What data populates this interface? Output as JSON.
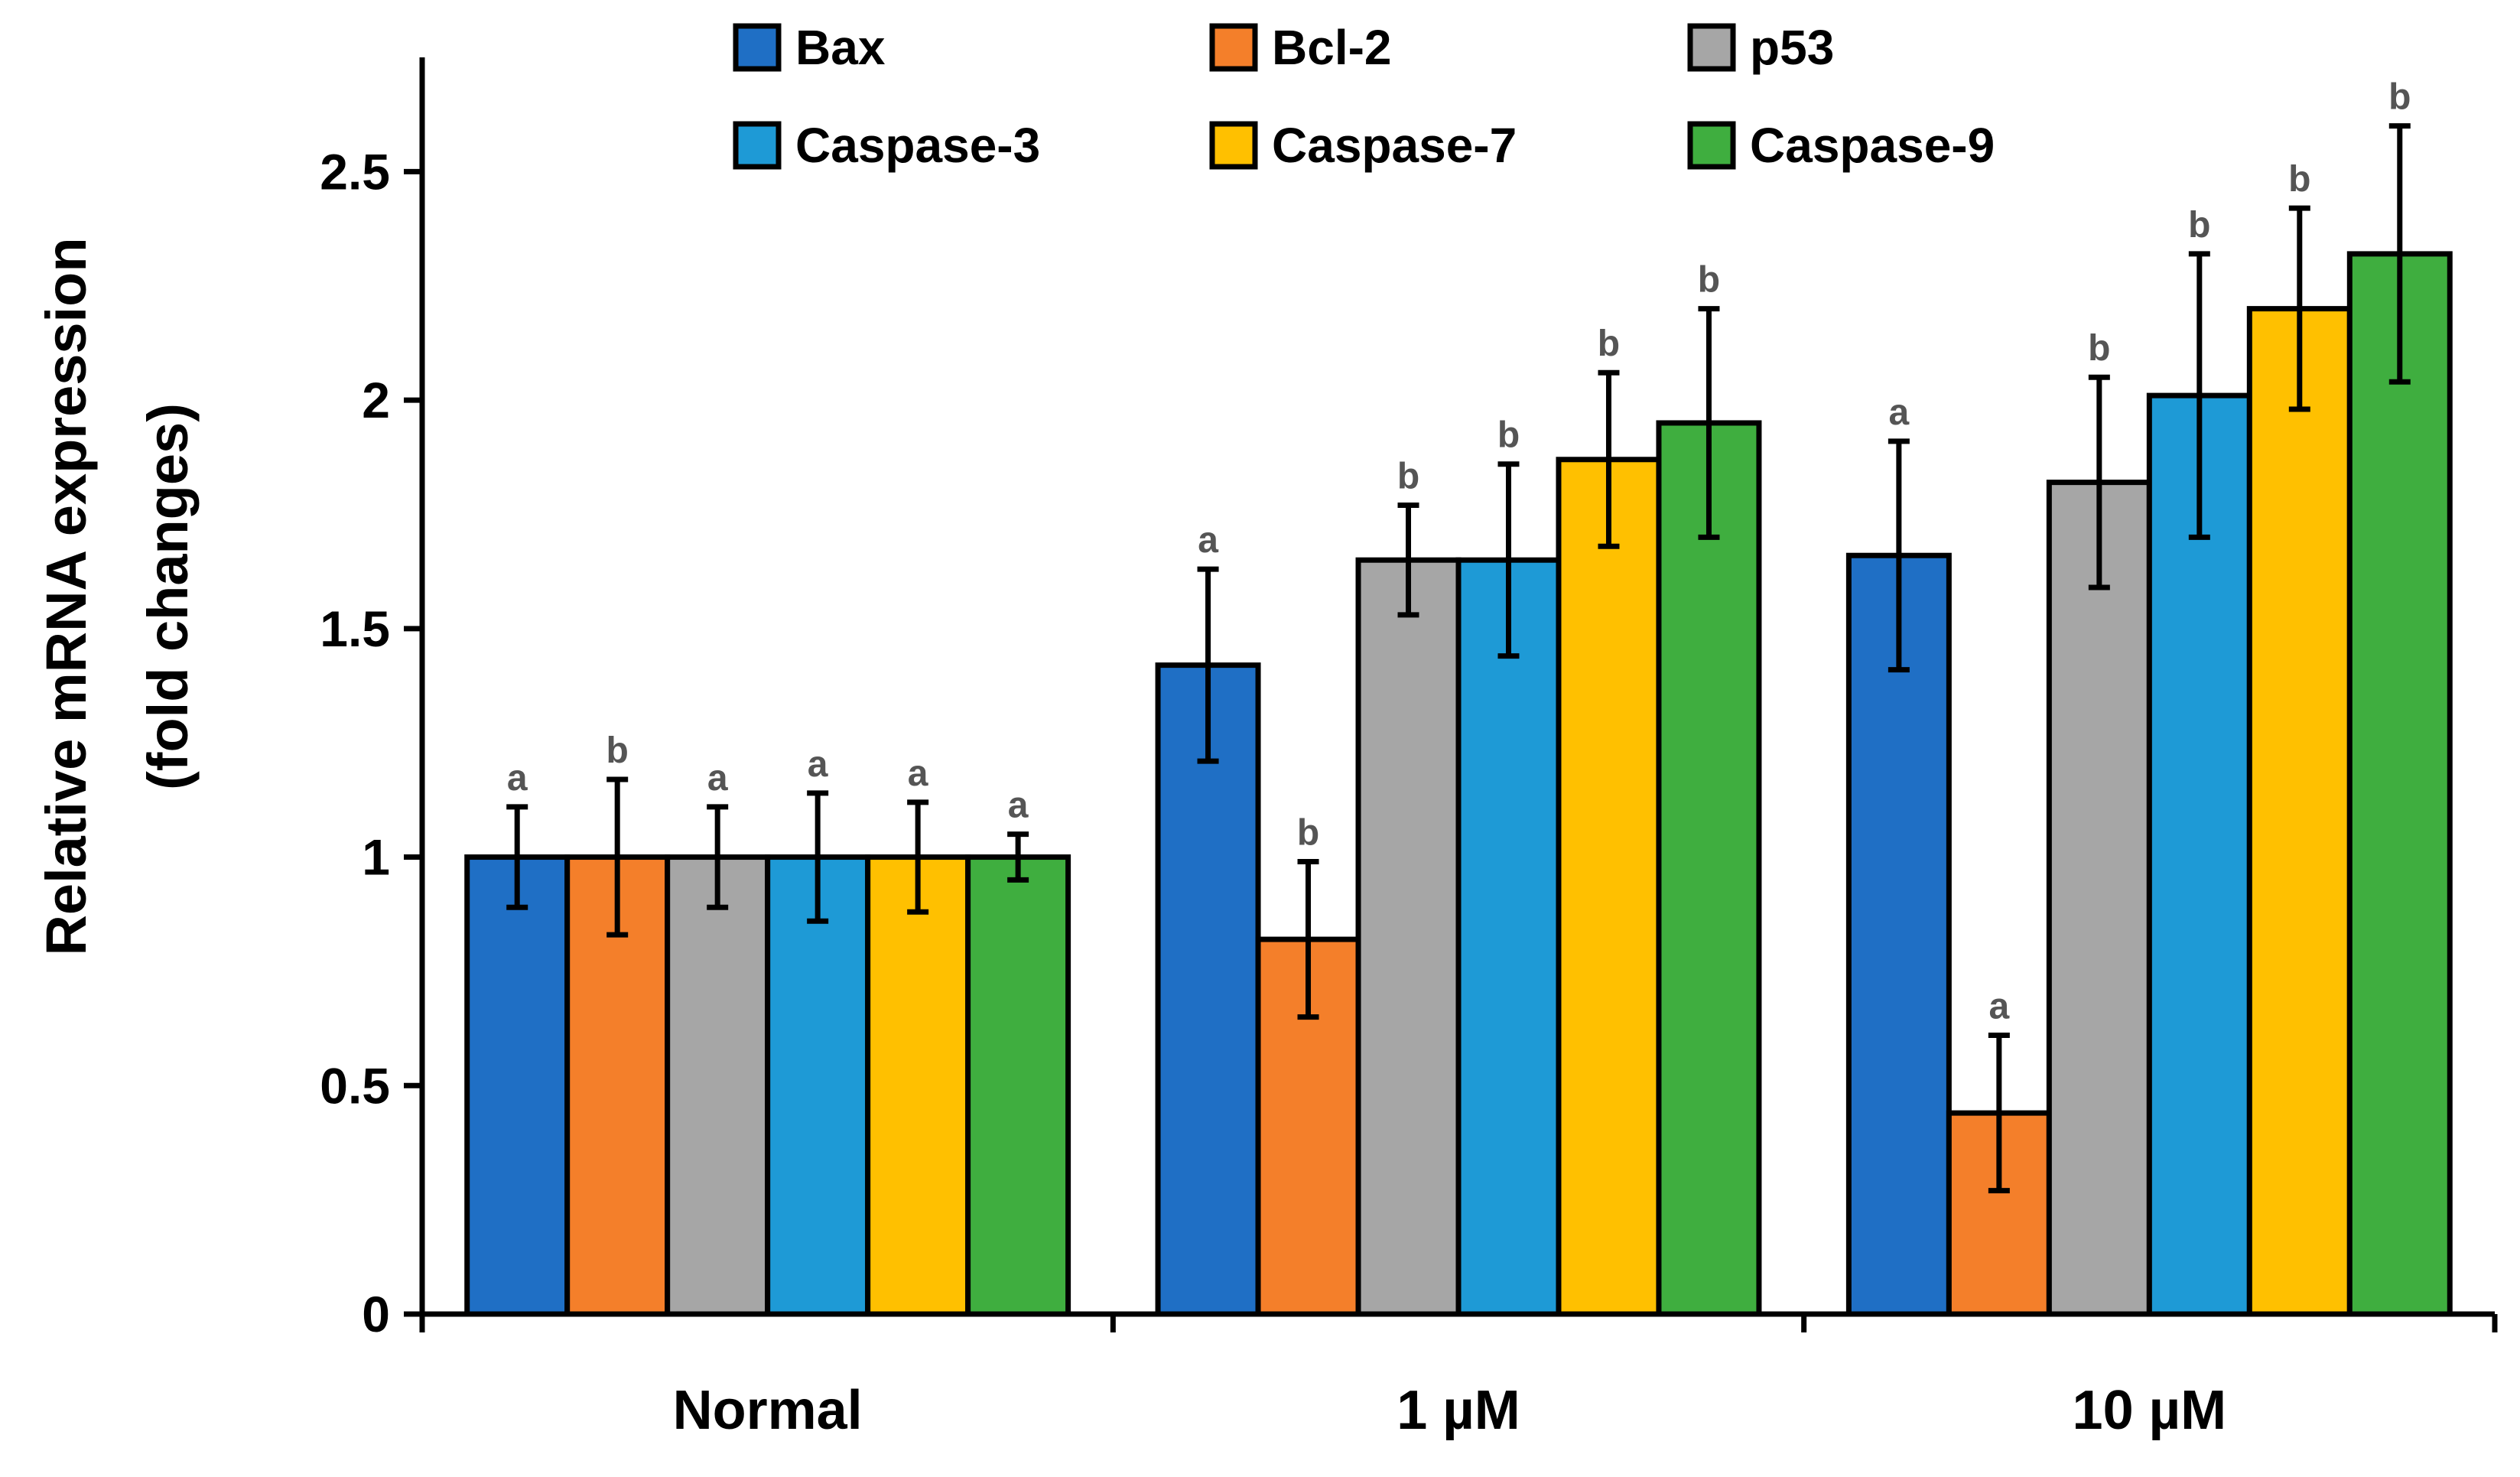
{
  "chart_data": {
    "type": "bar",
    "title": "",
    "xlabel": "",
    "ylabel": [
      "Relative mRNA expression",
      "(fold changes)"
    ],
    "ylim": [
      0,
      2.75
    ],
    "yticks": [
      0,
      0.5,
      1,
      1.5,
      2,
      2.5
    ],
    "ytick_labels": [
      "0",
      "0.5",
      "1",
      "1.5",
      "2",
      "2.5"
    ],
    "categories": [
      "Normal",
      "1 µM",
      "10 µM"
    ],
    "legend_position": "top",
    "series": [
      {
        "name": "Bax",
        "color": "#1F6FC5",
        "values": [
          1.0,
          1.42,
          1.66
        ],
        "errors": [
          0.11,
          0.21,
          0.25
        ],
        "labels": [
          "a",
          "a",
          "a"
        ]
      },
      {
        "name": "Bcl-2",
        "color": "#F47F2A",
        "values": [
          1.0,
          0.82,
          0.44
        ],
        "errors": [
          0.17,
          0.17,
          0.17
        ],
        "labels": [
          "b",
          "b",
          "a"
        ]
      },
      {
        "name": "p53",
        "color": "#A6A6A6",
        "values": [
          1.0,
          1.65,
          1.82
        ],
        "errors": [
          0.11,
          0.12,
          0.23
        ],
        "labels": [
          "a",
          "b",
          "b"
        ]
      },
      {
        "name": "Caspase-3",
        "color": "#1E9AD6",
        "values": [
          1.0,
          1.65,
          2.01
        ],
        "errors": [
          0.14,
          0.21,
          0.31
        ],
        "labels": [
          "a",
          "b",
          "b"
        ]
      },
      {
        "name": "Caspase-7",
        "color": "#FFC000",
        "values": [
          1.0,
          1.87,
          2.2
        ],
        "errors": [
          0.12,
          0.19,
          0.22
        ],
        "labels": [
          "a",
          "b",
          "b"
        ]
      },
      {
        "name": "Caspase-9",
        "color": "#3FAE3F",
        "values": [
          1.0,
          1.95,
          2.32
        ],
        "errors": [
          0.05,
          0.25,
          0.28
        ],
        "labels": [
          "a",
          "b",
          "b"
        ]
      }
    ]
  }
}
